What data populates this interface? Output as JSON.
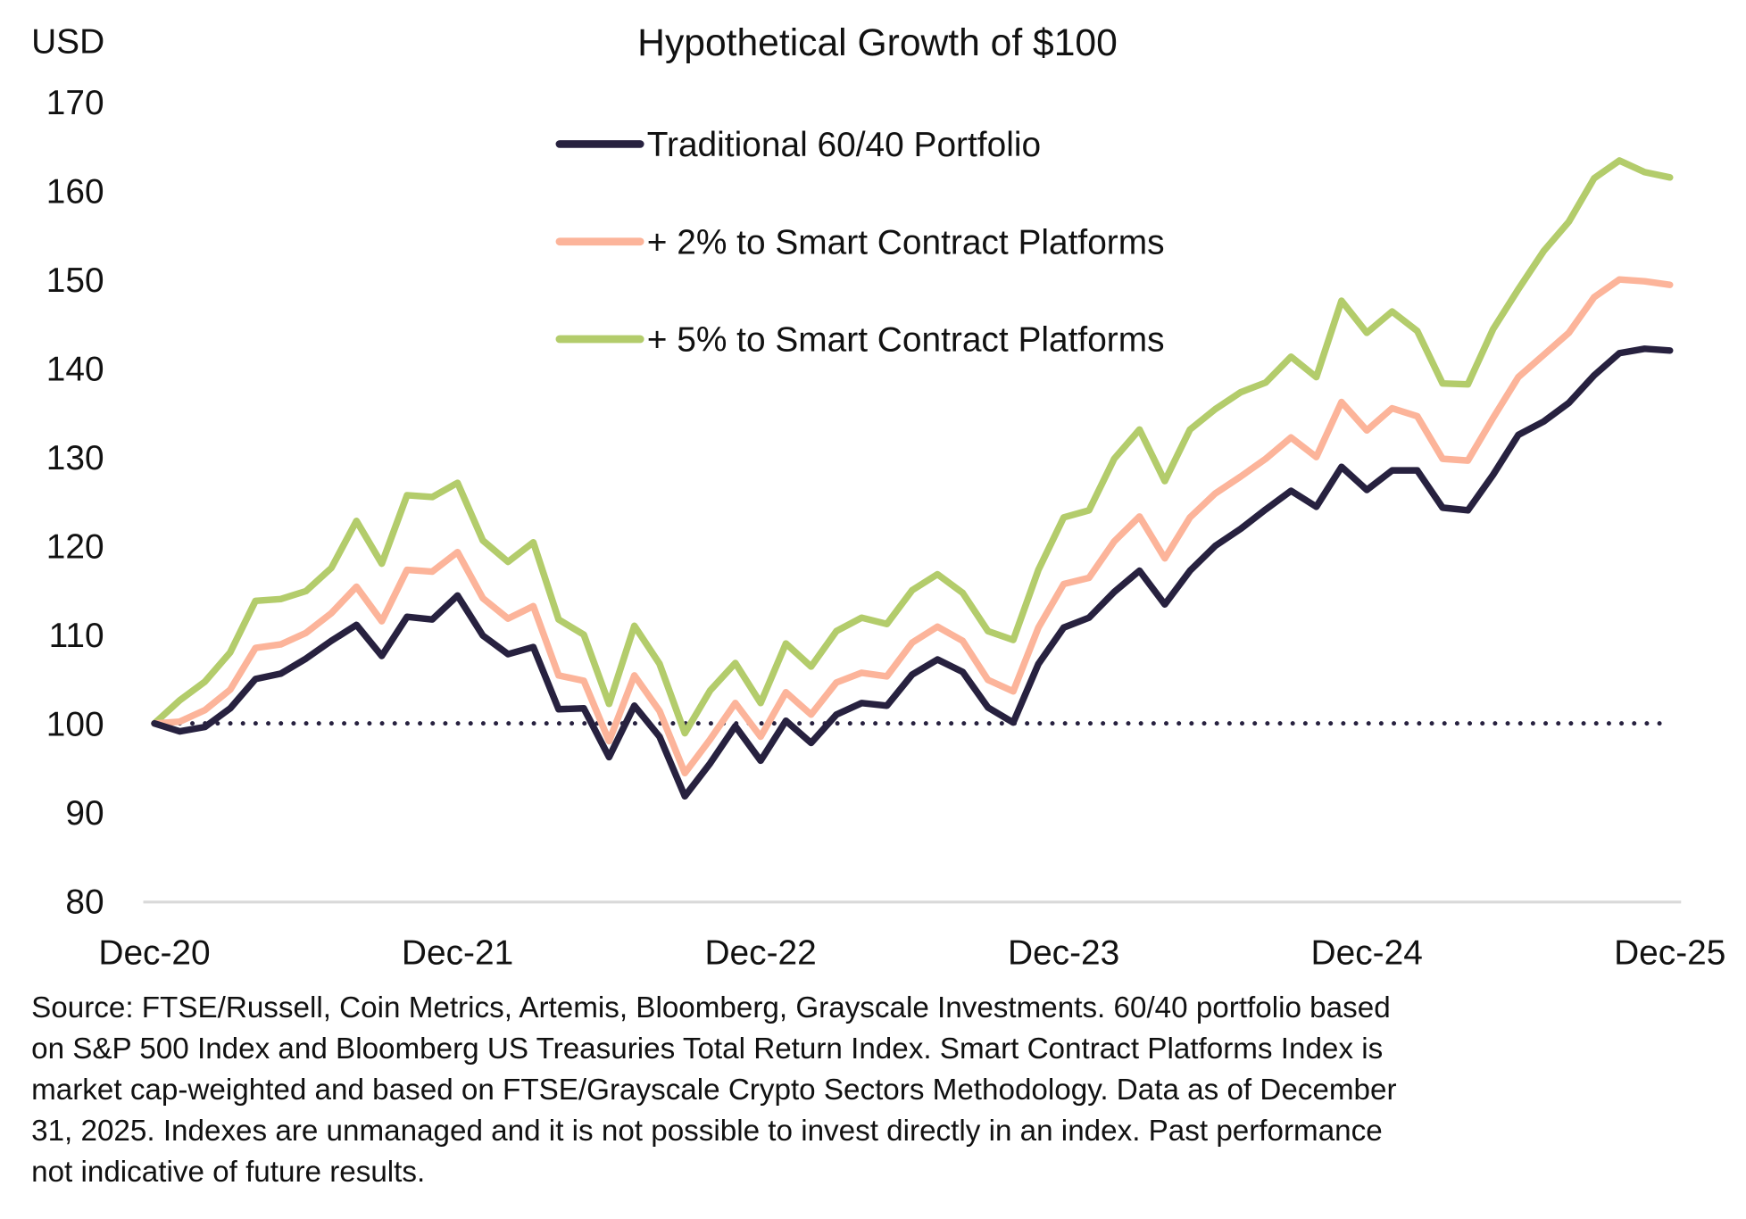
{
  "chart_data": {
    "type": "line",
    "title": "Hypothetical Growth of $100",
    "ylabel": "USD",
    "xlabel": "",
    "ylim": [
      80,
      170
    ],
    "yticks": [
      80,
      90,
      100,
      110,
      120,
      130,
      140,
      150,
      160,
      170
    ],
    "xticks": [
      "Dec-20",
      "Dec-21",
      "Dec-22",
      "Dec-23",
      "Dec-24",
      "Dec-25"
    ],
    "x_frequency": "monthly",
    "x_range": [
      "Dec-20",
      "Dec-25"
    ],
    "grid": false,
    "legend_position": "top-center",
    "reference_line": {
      "y": 100,
      "style": "dotted",
      "color": "#27213f"
    },
    "series": [
      {
        "name": "Traditional 60/40 Portfolio",
        "color": "#27213f",
        "values": [
          100,
          99.1,
          99.6,
          101.7,
          105,
          105.6,
          107.3,
          109.3,
          111.1,
          107.6,
          112,
          111.7,
          114.4,
          109.9,
          107.8,
          108.6,
          101.6,
          101.7,
          96.2,
          102,
          98.5,
          91.8,
          95.5,
          99.7,
          95.8,
          100.3,
          97.8,
          101,
          102.3,
          102,
          105.5,
          107.2,
          105.8,
          101.8,
          100.1,
          106.7,
          110.8,
          111.9,
          114.8,
          117.2,
          113.4,
          117.2,
          120,
          121.9,
          124.1,
          126.2,
          124.4,
          128.9,
          126.3,
          128.5,
          128.5,
          124.3,
          124,
          128,
          132.5,
          134,
          136.1,
          139.2,
          141.7,
          142.2,
          142
        ]
      },
      {
        "name": "+ 2% to Smart Contract Platforms",
        "color": "#fcb49a",
        "values": [
          100,
          100.2,
          101.5,
          103.8,
          108.5,
          108.9,
          110.2,
          112.4,
          115.4,
          111.5,
          117.3,
          117.1,
          119.3,
          114.1,
          111.8,
          113.2,
          105.4,
          104.8,
          98,
          105.4,
          101.4,
          94.4,
          98.2,
          102.3,
          98.5,
          103.5,
          101,
          104.6,
          105.7,
          105.3,
          109.1,
          110.9,
          109.3,
          104.9,
          103.6,
          110.8,
          115.7,
          116.4,
          120.5,
          123.3,
          118.6,
          123.2,
          125.9,
          127.8,
          129.8,
          132.2,
          130,
          136.2,
          133,
          135.5,
          134.6,
          129.8,
          129.6,
          134.4,
          139,
          141.5,
          144,
          148,
          150,
          149.8,
          149.4
        ]
      },
      {
        "name": "+ 5% to Smart Contract Platforms",
        "color": "#b3cc6b",
        "values": [
          100,
          102.6,
          104.7,
          108,
          113.8,
          114,
          114.9,
          117.5,
          122.8,
          118,
          125.7,
          125.5,
          127.1,
          120.6,
          118.2,
          120.4,
          111.7,
          110,
          102.2,
          111,
          106.7,
          98.9,
          103.7,
          106.8,
          102.3,
          109,
          106.4,
          110.4,
          111.9,
          111.2,
          115,
          116.8,
          114.7,
          110.4,
          109.4,
          117.3,
          123.2,
          124,
          129.8,
          133.1,
          127.3,
          133.1,
          135.4,
          137.3,
          138.4,
          141.3,
          139,
          147.6,
          144,
          146.4,
          144.2,
          138.3,
          138.2,
          144.4,
          148.9,
          153.2,
          156.5,
          161.4,
          163.4,
          162.1,
          161.5
        ]
      }
    ]
  },
  "footnote": {
    "lines": [
      "Source: FTSE/Russell, Coin Metrics, Artemis, Bloomberg, Grayscale Investments. 60/40 portfolio based",
      "on S&P 500 Index and Bloomberg US Treasuries Total Return Index. Smart Contract Platforms Index is",
      "market cap-weighted and based on FTSE/Grayscale Crypto Sectors Methodology. Data as of December",
      "31, 2025. Indexes are unmanaged and it is not possible to invest directly in an index. Past performance",
      "not indicative of future results."
    ]
  }
}
